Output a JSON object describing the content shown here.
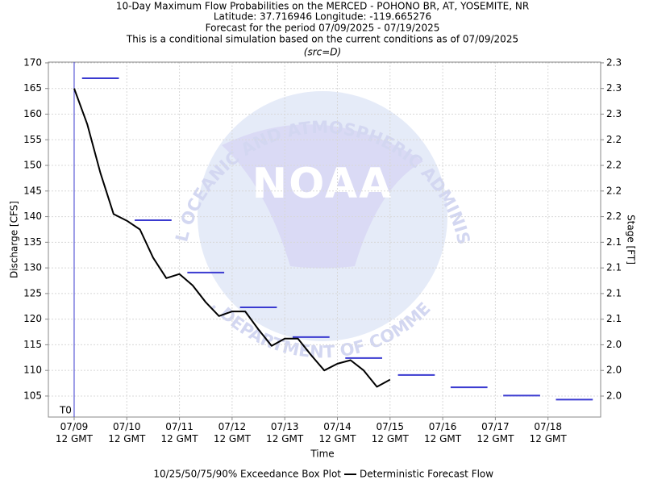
{
  "chart_data": {
    "type": "line",
    "title": [
      "10-Day Maximum Flow Probabilities on the MERCED - POHONO BR, AT, YOSEMITE, NR",
      "Latitude: 37.716946 Longitude: -119.665276",
      "Forecast for the period 07/09/2025 - 07/19/2025",
      "This is a conditional simulation based on the current conditions as of 07/09/2025"
    ],
    "subtitle": "(src=D)",
    "xlabel": "Time",
    "ylabel": "Discharge [CFS]",
    "y2label": "Stage [FT]",
    "t0": "2025-07-09T12:00Z",
    "t0_label": "T0",
    "watermark": {
      "center": "NOAA",
      "top": "NATIONAL OCEANIC AND ATMOSPHERIC ADMINISTRATION",
      "bottom": "U.S. DEPARTMENT OF COMMERCE"
    },
    "xlim": [
      "2025-07-09T00:15Z",
      "2025-07-19T12:00Z"
    ],
    "xticks": [
      {
        "value": "2025-07-09T12:00Z",
        "label": "07/09\n12 GMT"
      },
      {
        "value": "2025-07-10T12:00Z",
        "label": "07/10\n12 GMT"
      },
      {
        "value": "2025-07-11T12:00Z",
        "label": "07/11\n12 GMT"
      },
      {
        "value": "2025-07-12T12:00Z",
        "label": "07/12\n12 GMT"
      },
      {
        "value": "2025-07-13T12:00Z",
        "label": "07/13\n12 GMT"
      },
      {
        "value": "2025-07-14T12:00Z",
        "label": "07/14\n12 GMT"
      },
      {
        "value": "2025-07-15T12:00Z",
        "label": "07/15\n12 GMT"
      },
      {
        "value": "2025-07-16T12:00Z",
        "label": "07/16\n12 GMT"
      },
      {
        "value": "2025-07-17T12:00Z",
        "label": "07/17\n12 GMT"
      },
      {
        "value": "2025-07-18T12:00Z",
        "label": "07/18\n12 GMT"
      }
    ],
    "ylim": [
      100.9,
      170.15
    ],
    "yticks": [
      105,
      110,
      115,
      120,
      125,
      130,
      135,
      140,
      145,
      150,
      155,
      160,
      165,
      170
    ],
    "y2lim": [
      1.9475,
      2.3283
    ],
    "y2ticks": [
      {
        "value": 1.97,
        "label": "2.0"
      },
      {
        "value": 1.9975,
        "label": "2.0"
      },
      {
        "value": 2.025,
        "label": "2.0"
      },
      {
        "value": 2.0525,
        "label": "2.1"
      },
      {
        "value": 2.08,
        "label": "2.1"
      },
      {
        "value": 2.1075,
        "label": "2.1"
      },
      {
        "value": 2.135,
        "label": "2.1"
      },
      {
        "value": 2.1625,
        "label": "2.2"
      },
      {
        "value": 2.19,
        "label": "2.2"
      },
      {
        "value": 2.2175,
        "label": "2.2"
      },
      {
        "value": 2.245,
        "label": "2.2"
      },
      {
        "value": 2.2725,
        "label": "2.3"
      },
      {
        "value": 2.3,
        "label": "2.3"
      },
      {
        "value": 2.3275,
        "label": "2.3"
      }
    ],
    "grid": true,
    "series": [
      {
        "name": "10/25/50/75/90% Exceedance Box Plot",
        "type": "box",
        "color": "#3a3ad0",
        "x": [
          "2025-07-10T00:00Z",
          "2025-07-11T00:00Z",
          "2025-07-12T00:00Z",
          "2025-07-13T00:00Z",
          "2025-07-14T00:00Z",
          "2025-07-15T00:00Z",
          "2025-07-16T00:00Z",
          "2025-07-17T00:00Z",
          "2025-07-18T00:00Z",
          "2025-07-19T00:00Z"
        ],
        "values": [
          167,
          139.3,
          129.1,
          122.3,
          116.5,
          112.4,
          109.1,
          106.7,
          105.1,
          104.3
        ]
      },
      {
        "name": "Deterministic Forecast Flow",
        "type": "line",
        "color": "#000000",
        "x": [
          "2025-07-09T12:00Z",
          "2025-07-09T18:00Z",
          "2025-07-10T00:00Z",
          "2025-07-10T06:00Z",
          "2025-07-10T12:00Z",
          "2025-07-10T18:00Z",
          "2025-07-11T00:00Z",
          "2025-07-11T06:00Z",
          "2025-07-11T12:00Z",
          "2025-07-11T18:00Z",
          "2025-07-12T00:00Z",
          "2025-07-12T06:00Z",
          "2025-07-12T12:00Z",
          "2025-07-12T18:00Z",
          "2025-07-13T00:00Z",
          "2025-07-13T06:00Z",
          "2025-07-13T12:00Z",
          "2025-07-13T18:00Z",
          "2025-07-14T00:00Z",
          "2025-07-14T06:00Z",
          "2025-07-14T12:00Z",
          "2025-07-14T18:00Z",
          "2025-07-15T00:00Z",
          "2025-07-15T06:00Z",
          "2025-07-15T12:00Z"
        ],
        "values": [
          165,
          158,
          148.5,
          140.5,
          139.2,
          137.5,
          132,
          128,
          128.8,
          126.6,
          123.3,
          120.6,
          121.5,
          121.5,
          118,
          114.8,
          116.2,
          116.2,
          113,
          110,
          111.3,
          112,
          110,
          106.8,
          108.2
        ]
      }
    ]
  }
}
